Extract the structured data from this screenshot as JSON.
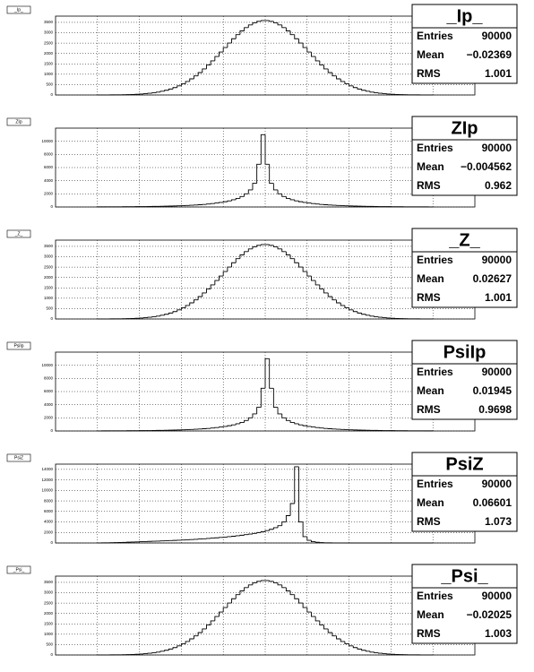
{
  "chart_data": [
    {
      "type": "histogram",
      "title": "_Ip_",
      "bins": [
        -4,
        -3.9,
        -3.8,
        -3.7,
        -3.6,
        -3.5,
        -3.4,
        -3.3,
        -3.2,
        -3.1,
        -3,
        -2.9,
        -2.8,
        -2.7,
        -2.6,
        -2.5,
        -2.4,
        -2.3,
        -2.2,
        -2.1,
        -2,
        -1.9,
        -1.8,
        -1.7,
        -1.6,
        -1.5,
        -1.4,
        -1.3,
        -1.2,
        -1.1,
        -1,
        -0.9,
        -0.8,
        -0.7,
        -0.6,
        -0.5,
        -0.4,
        -0.3,
        -0.2,
        -0.1,
        0,
        0.1,
        0.2,
        0.3,
        0.4,
        0.5,
        0.6,
        0.7,
        0.8,
        0.9,
        1,
        1.1,
        1.2,
        1.3,
        1.4,
        1.5,
        1.6,
        1.7,
        1.8,
        1.9,
        2,
        2.1,
        2.2,
        2.3,
        2.4,
        2.5,
        2.6,
        2.7,
        2.8,
        2.9,
        3,
        3.1,
        3.2,
        3.3,
        3.4,
        3.5,
        3.6,
        3.7,
        3.8,
        3.9,
        4
      ],
      "values": [
        1,
        2,
        3,
        5,
        7,
        9,
        13,
        18,
        25,
        34,
        46,
        62,
        82,
        107,
        139,
        179,
        227,
        286,
        356,
        439,
        536,
        649,
        777,
        920,
        1080,
        1255,
        1443,
        1644,
        1853,
        2069,
        2287,
        2502,
        2710,
        2907,
        3087,
        3245,
        3377,
        3480,
        3550,
        3586,
        3586,
        3550,
        3480,
        3377,
        3245,
        3087,
        2907,
        2710,
        2502,
        2287,
        2069,
        1853,
        1644,
        1443,
        1255,
        1080,
        920,
        777,
        649,
        536,
        439,
        356,
        286,
        227,
        179,
        139,
        107,
        82,
        62,
        46,
        34,
        25,
        18,
        13,
        9,
        7,
        5,
        3,
        2,
        1
      ],
      "xlim": [
        -5,
        5
      ],
      "xticks": [
        -4,
        -3,
        -2,
        -1,
        0,
        1,
        2,
        3,
        4
      ],
      "ylim": [
        0,
        3800
      ],
      "yticks": [
        0,
        500,
        1000,
        1500,
        2000,
        2500,
        3000,
        3500
      ],
      "grid": true,
      "color": "#000000",
      "stats": [
        {
          "label": "Entries",
          "value": "90000"
        },
        {
          "label": "Mean",
          "value": "−0.02369"
        },
        {
          "label": "RMS",
          "value": "1.001"
        }
      ]
    },
    {
      "type": "histogram",
      "title": "ZIp",
      "bins": [
        -4,
        -3.9,
        -3.8,
        -3.7,
        -3.6,
        -3.5,
        -3.4,
        -3.3,
        -3.2,
        -3.1,
        -3,
        -2.9,
        -2.8,
        -2.7,
        -2.6,
        -2.5,
        -2.4,
        -2.3,
        -2.2,
        -2.1,
        -2,
        -1.9,
        -1.8,
        -1.7,
        -1.6,
        -1.5,
        -1.4,
        -1.3,
        -1.2,
        -1.1,
        -1,
        -0.9,
        -0.8,
        -0.7,
        -0.6,
        -0.5,
        -0.4,
        -0.3,
        -0.2,
        -0.1,
        0,
        0.1,
        0.2,
        0.3,
        0.4,
        0.5,
        0.6,
        0.7,
        0.8,
        0.9,
        1,
        1.1,
        1.2,
        1.3,
        1.4,
        1.5,
        1.6,
        1.7,
        1.8,
        1.9,
        2,
        2.1,
        2.2,
        2.3,
        2.4,
        2.5,
        2.6,
        2.7,
        2.8,
        2.9,
        3,
        3.1,
        3.2,
        3.3,
        3.4,
        3.5,
        3.6,
        3.7,
        3.8,
        3.9,
        4
      ],
      "values": [
        16,
        18,
        21,
        24,
        27,
        31,
        35,
        40,
        45,
        51,
        58,
        66,
        74,
        84,
        95,
        107,
        121,
        137,
        155,
        175,
        200,
        230,
        260,
        300,
        340,
        390,
        450,
        520,
        600,
        690,
        800,
        930,
        1100,
        1300,
        1600,
        2000,
        2600,
        3600,
        6500,
        11000,
        6500,
        3600,
        2600,
        2000,
        1600,
        1300,
        1100,
        930,
        800,
        690,
        600,
        520,
        450,
        390,
        340,
        300,
        260,
        230,
        200,
        175,
        155,
        137,
        121,
        107,
        95,
        84,
        74,
        66,
        58,
        51,
        45,
        40,
        35,
        31,
        27,
        24,
        21,
        18,
        16,
        14
      ],
      "xlim": [
        -5,
        5
      ],
      "xticks": [
        -4,
        -3,
        -2,
        -1,
        0,
        1,
        2,
        3,
        4
      ],
      "ylim": [
        0,
        12000
      ],
      "yticks": [
        0,
        2000,
        4000,
        6000,
        8000,
        10000
      ],
      "grid": true,
      "color": "#000000",
      "stats": [
        {
          "label": "Entries",
          "value": "90000"
        },
        {
          "label": "Mean",
          "value": "−0.004562"
        },
        {
          "label": "RMS",
          "value": "0.962"
        }
      ]
    },
    {
      "type": "histogram",
      "title": "_Z_",
      "bins": [
        -4,
        -3.9,
        -3.8,
        -3.7,
        -3.6,
        -3.5,
        -3.4,
        -3.3,
        -3.2,
        -3.1,
        -3,
        -2.9,
        -2.8,
        -2.7,
        -2.6,
        -2.5,
        -2.4,
        -2.3,
        -2.2,
        -2.1,
        -2,
        -1.9,
        -1.8,
        -1.7,
        -1.6,
        -1.5,
        -1.4,
        -1.3,
        -1.2,
        -1.1,
        -1,
        -0.9,
        -0.8,
        -0.7,
        -0.6,
        -0.5,
        -0.4,
        -0.3,
        -0.2,
        -0.1,
        0,
        0.1,
        0.2,
        0.3,
        0.4,
        0.5,
        0.6,
        0.7,
        0.8,
        0.9,
        1,
        1.1,
        1.2,
        1.3,
        1.4,
        1.5,
        1.6,
        1.7,
        1.8,
        1.9,
        2,
        2.1,
        2.2,
        2.3,
        2.4,
        2.5,
        2.6,
        2.7,
        2.8,
        2.9,
        3,
        3.1,
        3.2,
        3.3,
        3.4,
        3.5,
        3.6,
        3.7,
        3.8,
        3.9,
        4
      ],
      "values": [
        1,
        2,
        3,
        5,
        7,
        9,
        13,
        18,
        25,
        34,
        46,
        62,
        82,
        107,
        139,
        179,
        227,
        286,
        356,
        439,
        536,
        649,
        777,
        920,
        1080,
        1255,
        1443,
        1644,
        1853,
        2069,
        2287,
        2502,
        2710,
        2907,
        3087,
        3245,
        3377,
        3480,
        3550,
        3586,
        3586,
        3550,
        3480,
        3377,
        3245,
        3087,
        2907,
        2710,
        2502,
        2287,
        2069,
        1853,
        1644,
        1443,
        1255,
        1080,
        920,
        777,
        649,
        536,
        439,
        356,
        286,
        227,
        179,
        139,
        107,
        82,
        62,
        46,
        34,
        25,
        18,
        13,
        9,
        7,
        5,
        3,
        2,
        1
      ],
      "xlim": [
        -5,
        5
      ],
      "xticks": [
        -4,
        -3,
        -2,
        -1,
        0,
        1,
        2,
        3,
        4
      ],
      "ylim": [
        0,
        3800
      ],
      "yticks": [
        0,
        500,
        1000,
        1500,
        2000,
        2500,
        3000,
        3500
      ],
      "grid": true,
      "color": "#000000",
      "stats": [
        {
          "label": "Entries",
          "value": "90000"
        },
        {
          "label": "Mean",
          "value": "0.02627"
        },
        {
          "label": "RMS",
          "value": "1.001"
        }
      ]
    },
    {
      "type": "histogram",
      "title": "PsiIp",
      "bins": [
        -4,
        -3.9,
        -3.8,
        -3.7,
        -3.6,
        -3.5,
        -3.4,
        -3.3,
        -3.2,
        -3.1,
        -3,
        -2.9,
        -2.8,
        -2.7,
        -2.6,
        -2.5,
        -2.4,
        -2.3,
        -2.2,
        -2.1,
        -2,
        -1.9,
        -1.8,
        -1.7,
        -1.6,
        -1.5,
        -1.4,
        -1.3,
        -1.2,
        -1.1,
        -1,
        -0.9,
        -0.8,
        -0.7,
        -0.6,
        -0.5,
        -0.4,
        -0.3,
        -0.2,
        -0.1,
        0,
        0.1,
        0.2,
        0.3,
        0.4,
        0.5,
        0.6,
        0.7,
        0.8,
        0.9,
        1,
        1.1,
        1.2,
        1.3,
        1.4,
        1.5,
        1.6,
        1.7,
        1.8,
        1.9,
        2,
        2.1,
        2.2,
        2.3,
        2.4,
        2.5,
        2.6,
        2.7,
        2.8,
        2.9,
        3,
        3.1,
        3.2,
        3.3,
        3.4,
        3.5,
        3.6,
        3.7,
        3.8,
        3.9,
        4
      ],
      "values": [
        14,
        16,
        18,
        21,
        24,
        27,
        31,
        35,
        40,
        45,
        51,
        58,
        66,
        74,
        84,
        95,
        107,
        121,
        137,
        155,
        175,
        200,
        230,
        260,
        300,
        340,
        390,
        450,
        520,
        600,
        690,
        800,
        930,
        1100,
        1300,
        1600,
        2000,
        2600,
        3600,
        6500,
        11000,
        6500,
        3600,
        2600,
        2000,
        1600,
        1300,
        1100,
        930,
        800,
        690,
        600,
        520,
        450,
        390,
        340,
        300,
        260,
        230,
        200,
        175,
        155,
        137,
        121,
        107,
        95,
        84,
        74,
        66,
        58,
        51,
        45,
        40,
        35,
        31,
        27,
        24,
        21,
        18,
        16
      ],
      "xlim": [
        -5,
        5
      ],
      "xticks": [
        -4,
        -3,
        -2,
        -1,
        0,
        1,
        2,
        3,
        4
      ],
      "ylim": [
        0,
        12000
      ],
      "yticks": [
        0,
        2000,
        4000,
        6000,
        8000,
        10000
      ],
      "grid": true,
      "color": "#000000",
      "stats": [
        {
          "label": "Entries",
          "value": "90000"
        },
        {
          "label": "Mean",
          "value": "0.01945"
        },
        {
          "label": "RMS",
          "value": "0.9698"
        }
      ]
    },
    {
      "type": "histogram",
      "title": "PsiZ",
      "bins": [
        -4,
        -3.9,
        -3.8,
        -3.7,
        -3.6,
        -3.5,
        -3.4,
        -3.3,
        -3.2,
        -3.1,
        -3,
        -2.9,
        -2.8,
        -2.7,
        -2.6,
        -2.5,
        -2.4,
        -2.3,
        -2.2,
        -2.1,
        -2,
        -1.9,
        -1.8,
        -1.7,
        -1.6,
        -1.5,
        -1.4,
        -1.3,
        -1.2,
        -1.1,
        -1,
        -0.9,
        -0.8,
        -0.7,
        -0.6,
        -0.5,
        -0.4,
        -0.3,
        -0.2,
        -0.1,
        0,
        0.1,
        0.2,
        0.3,
        0.4,
        0.5,
        0.6,
        0.7,
        0.8,
        0.9,
        1,
        1.1,
        1.2,
        1.3,
        1.4,
        1.5,
        1.6,
        1.7,
        1.8,
        1.9,
        2,
        2.1,
        2.2,
        2.3,
        2.4,
        2.5,
        2.6,
        2.7,
        2.8,
        2.9,
        3,
        3.1,
        3.2,
        3.3,
        3.4,
        3.5,
        3.6,
        3.7,
        3.8,
        3.9,
        4
      ],
      "values": [
        15,
        25,
        40,
        60,
        80,
        100,
        120,
        150,
        180,
        210,
        240,
        270,
        300,
        330,
        360,
        390,
        420,
        460,
        490,
        530,
        570,
        610,
        650,
        700,
        750,
        800,
        860,
        920,
        980,
        1050,
        1120,
        1200,
        1280,
        1370,
        1470,
        1580,
        1700,
        1830,
        1980,
        2150,
        2350,
        2600,
        2900,
        3300,
        4000,
        5200,
        7500,
        14500,
        4000,
        1200,
        500,
        250,
        130,
        70,
        40,
        22,
        12,
        7,
        4,
        2,
        1,
        0,
        0,
        0,
        0,
        0,
        0,
        0,
        0,
        0,
        0,
        0,
        0,
        0,
        0,
        0,
        0,
        0,
        0,
        0
      ],
      "xlim": [
        -5,
        5
      ],
      "xticks": [
        -4,
        -3,
        -2,
        -1,
        0,
        1,
        2,
        3,
        4
      ],
      "ylim": [
        0,
        15000
      ],
      "yticks": [
        0,
        2000,
        4000,
        6000,
        8000,
        10000,
        12000,
        14000
      ],
      "grid": true,
      "color": "#000000",
      "stats": [
        {
          "label": "Entries",
          "value": "90000"
        },
        {
          "label": "Mean",
          "value": "0.06601"
        },
        {
          "label": "RMS",
          "value": "1.073"
        }
      ]
    },
    {
      "type": "histogram",
      "title": "_Psi_",
      "bins": [
        -4,
        -3.9,
        -3.8,
        -3.7,
        -3.6,
        -3.5,
        -3.4,
        -3.3,
        -3.2,
        -3.1,
        -3,
        -2.9,
        -2.8,
        -2.7,
        -2.6,
        -2.5,
        -2.4,
        -2.3,
        -2.2,
        -2.1,
        -2,
        -1.9,
        -1.8,
        -1.7,
        -1.6,
        -1.5,
        -1.4,
        -1.3,
        -1.2,
        -1.1,
        -1,
        -0.9,
        -0.8,
        -0.7,
        -0.6,
        -0.5,
        -0.4,
        -0.3,
        -0.2,
        -0.1,
        0,
        0.1,
        0.2,
        0.3,
        0.4,
        0.5,
        0.6,
        0.7,
        0.8,
        0.9,
        1,
        1.1,
        1.2,
        1.3,
        1.4,
        1.5,
        1.6,
        1.7,
        1.8,
        1.9,
        2,
        2.1,
        2.2,
        2.3,
        2.4,
        2.5,
        2.6,
        2.7,
        2.8,
        2.9,
        3,
        3.1,
        3.2,
        3.3,
        3.4,
        3.5,
        3.6,
        3.7,
        3.8,
        3.9,
        4
      ],
      "values": [
        1,
        2,
        3,
        5,
        7,
        9,
        13,
        18,
        25,
        34,
        46,
        62,
        82,
        107,
        139,
        179,
        227,
        286,
        356,
        439,
        536,
        649,
        777,
        920,
        1080,
        1255,
        1443,
        1644,
        1853,
        2069,
        2287,
        2502,
        2710,
        2907,
        3087,
        3245,
        3377,
        3480,
        3550,
        3586,
        3586,
        3550,
        3480,
        3377,
        3245,
        3087,
        2907,
        2710,
        2502,
        2287,
        2069,
        1853,
        1644,
        1443,
        1255,
        1080,
        920,
        777,
        649,
        536,
        439,
        356,
        286,
        227,
        179,
        139,
        107,
        82,
        62,
        46,
        34,
        25,
        18,
        13,
        9,
        7,
        5,
        3,
        2,
        1
      ],
      "xlim": [
        -5,
        5
      ],
      "xticks": [
        -4,
        -3,
        -2,
        -1,
        0,
        1,
        2,
        3,
        4
      ],
      "ylim": [
        0,
        3800
      ],
      "yticks": [
        0,
        500,
        1000,
        1500,
        2000,
        2500,
        3000,
        3500
      ],
      "grid": true,
      "color": "#000000",
      "stats": [
        {
          "label": "Entries",
          "value": "90000"
        },
        {
          "label": "Mean",
          "value": "−0.02025"
        },
        {
          "label": "RMS",
          "value": "1.003"
        }
      ]
    }
  ]
}
